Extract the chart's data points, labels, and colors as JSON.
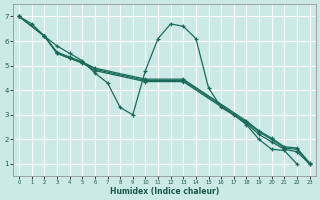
{
  "xlabel": "Humidex (Indice chaleur)",
  "bg_color": "#cceae5",
  "grid_color": "#ffffff",
  "line_color": "#1a6b5a",
  "xlim": [
    -0.5,
    23.5
  ],
  "ylim": [
    0.5,
    7.5
  ],
  "xticks": [
    0,
    1,
    2,
    3,
    4,
    5,
    6,
    7,
    8,
    9,
    10,
    11,
    12,
    13,
    14,
    15,
    16,
    17,
    18,
    19,
    20,
    21,
    22,
    23
  ],
  "yticks": [
    1,
    2,
    3,
    4,
    5,
    6,
    7
  ],
  "series1_x": [
    0,
    1,
    2,
    3,
    4,
    5,
    6,
    7,
    8,
    9,
    10,
    11,
    12,
    13,
    14,
    15,
    16,
    17,
    18,
    19,
    20,
    21,
    22
  ],
  "series1_y": [
    7.0,
    6.7,
    6.2,
    5.8,
    5.5,
    5.2,
    4.7,
    4.3,
    3.3,
    3.0,
    4.8,
    6.1,
    6.7,
    6.6,
    6.1,
    4.1,
    3.3,
    3.0,
    2.6,
    2.0,
    1.6,
    1.55,
    1.0
  ],
  "series2_x": [
    0,
    2,
    3,
    4,
    5,
    6,
    10,
    13,
    18,
    19,
    20,
    21,
    22,
    23
  ],
  "series2_y": [
    7.0,
    6.2,
    5.5,
    5.3,
    5.15,
    4.85,
    4.4,
    4.4,
    2.7,
    2.3,
    2.0,
    1.65,
    1.6,
    1.0
  ],
  "series3_x": [
    0,
    2,
    3,
    4,
    5,
    6,
    10,
    13,
    18,
    19,
    20,
    21,
    22,
    23
  ],
  "series3_y": [
    7.0,
    6.2,
    5.5,
    5.3,
    5.1,
    4.8,
    4.35,
    4.35,
    2.65,
    2.2,
    1.9,
    1.6,
    1.5,
    1.0
  ],
  "series4_x": [
    0,
    2,
    3,
    4,
    5,
    6,
    10,
    13,
    18,
    19,
    20,
    21,
    22,
    23
  ],
  "series4_y": [
    7.0,
    6.2,
    5.55,
    5.35,
    5.15,
    4.9,
    4.45,
    4.45,
    2.75,
    2.35,
    2.05,
    1.7,
    1.65,
    1.05
  ]
}
